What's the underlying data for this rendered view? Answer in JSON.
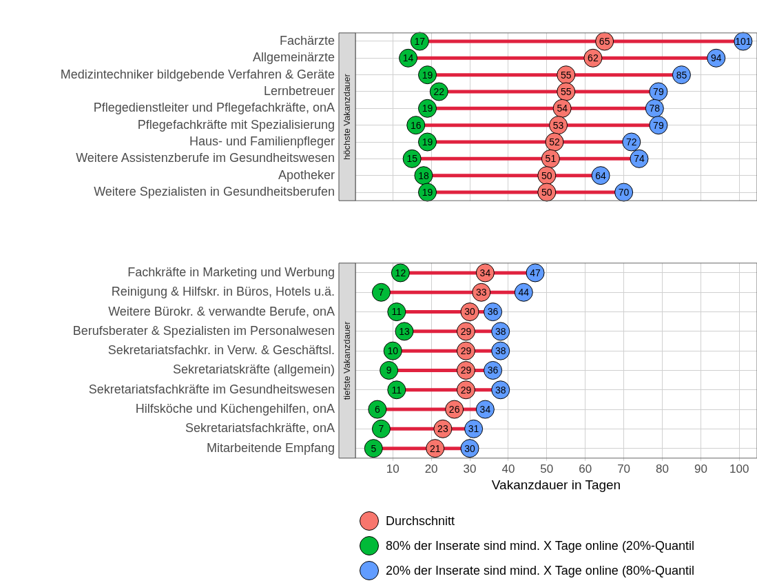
{
  "chart_data": [
    {
      "type": "scatter",
      "orientation": "horizontal",
      "title": "höchste Vakanzdauer",
      "categories": [
        "Fachärzte",
        "Allgemeinärzte",
        "Medizintechniker bildgebende Verfahren & Geräte",
        "Lernbetreuer",
        "Pflegedienstleiter und Pflegefachkräfte, onA",
        "Pflegefachkräfte mit Spezialisierung",
        "Haus- und Familienpfleger",
        "Weitere Assistenzberufe im Gesundheitswesen",
        "Apotheker",
        "Weitere Spezialisten in Gesundheitsberufen"
      ],
      "series": [
        {
          "name": "Durchschnitt",
          "color": "#f8766d",
          "values": [
            65,
            62,
            55,
            55,
            54,
            53,
            52,
            51,
            50,
            50
          ],
          "value_labels": [
            "65",
            "62",
            "55",
            "55",
            "54",
            "53",
            "52",
            "51",
            "50",
            "50"
          ]
        },
        {
          "name": "80% der Inserate sind mind. X Tage online (20%-Quantil",
          "color": "#00ba38",
          "values": [
            17,
            14,
            19,
            22,
            19,
            16,
            19,
            15,
            18,
            19
          ],
          "value_labels": [
            "17",
            "14",
            "19",
            "22",
            "19",
            "16",
            "19",
            "15",
            "18",
            "19"
          ]
        },
        {
          "name": "20% der Inserate sind mind. X Tage online (80%-Quantil",
          "color": "#619cff",
          "values": [
            101,
            94,
            85,
            79,
            78,
            79,
            72,
            74,
            64,
            70
          ],
          "value_labels": [
            "101",
            "94",
            "85",
            "79",
            "78",
            "79",
            "72",
            "74",
            "64",
            "70"
          ]
        }
      ],
      "xlim": [
        0.3,
        104.6
      ],
      "xticks": [
        10,
        20,
        30,
        40,
        50,
        60,
        70,
        80,
        90,
        100
      ],
      "tick_labels": "y",
      "grid": true,
      "marker": "circle",
      "legend": "bottom"
    },
    {
      "type": "scatter",
      "orientation": "horizontal",
      "title": "tiefste Vakanzdauer",
      "xlabel": "Vakanzdauer in Tagen",
      "categories": [
        "Fachkräfte in Marketing und Werbung",
        "Reinigung & Hilfskr. in Büros, Hotels u.ä.",
        "Weitere Bürokr. & verwandte Berufe, onA",
        "Berufsberater & Spezialisten im Personalwesen",
        "Sekretariatsfachkr. in Verw. & Geschäftsl.",
        "Sekretariatskräfte (allgemein)",
        "Sekretariatsfachkräfte im Gesundheitswesen",
        "Hilfsköche und Küchengehilfen, onA",
        "Sekretariatsfachkräfte, onA",
        "Mitarbeitende Empfang"
      ],
      "series": [
        {
          "name": "Durchschnitt",
          "color": "#f8766d",
          "values": [
            34,
            33,
            30,
            29,
            29,
            29,
            29,
            26,
            23,
            21
          ],
          "value_labels": [
            "34",
            "33",
            "30",
            "29",
            "29",
            "29",
            "29",
            "26",
            "23",
            "21"
          ]
        },
        {
          "name": "80% der Inserate sind mind. X Tage online (20%-Quantil",
          "color": "#00ba38",
          "values": [
            12,
            7,
            11,
            13,
            10,
            9,
            11,
            6,
            7,
            5
          ],
          "value_labels": [
            "12",
            "7",
            "11",
            "13",
            "10",
            "9",
            "11",
            "6",
            "7",
            "5"
          ]
        },
        {
          "name": "20% der Inserate sind mind. X Tage online (80%-Quantil",
          "color": "#619cff",
          "values": [
            47,
            44,
            36,
            38,
            38,
            36,
            38,
            34,
            31,
            30
          ],
          "value_labels": [
            "47",
            "44",
            "36",
            "38",
            "38",
            "36",
            "38",
            "34",
            "31",
            "30"
          ]
        }
      ],
      "xlim": [
        0.3,
        104.6
      ],
      "xticks": [
        10,
        20,
        30,
        40,
        50,
        60,
        70,
        80,
        90,
        100
      ],
      "grid": true,
      "marker": "circle",
      "legend": "bottom"
    }
  ]
}
